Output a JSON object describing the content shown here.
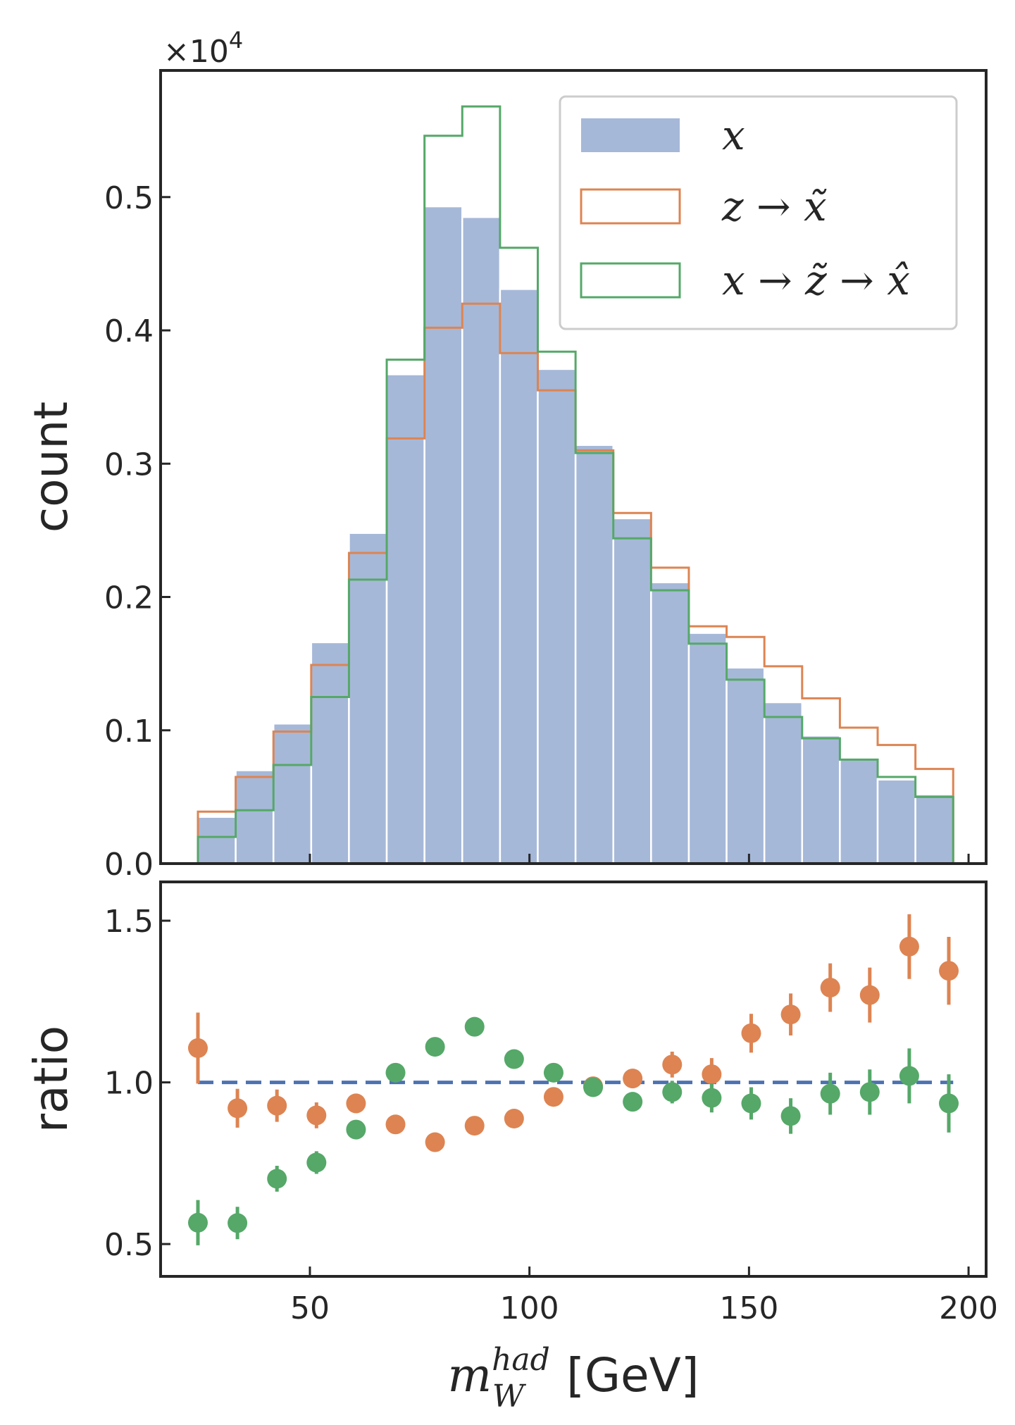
{
  "chart_data": [
    {
      "type": "bar",
      "subtype": "histogram",
      "ylabel": "count",
      "offset_text": "×10",
      "offset_exponent": "4",
      "ylim": [
        0,
        0.595
      ],
      "xlim": [
        16,
        204
      ],
      "yticks": [
        0.0,
        0.1,
        0.2,
        0.3,
        0.4,
        0.5
      ],
      "ytick_labels": [
        "0.0",
        "0.1",
        "0.2",
        "0.3",
        "0.4",
        "0.5"
      ],
      "bin_edges": [
        24.5,
        33.1,
        41.7,
        50.3,
        58.9,
        67.5,
        76.1,
        84.7,
        93.3,
        101.9,
        110.5,
        119.1,
        127.7,
        136.3,
        144.9,
        153.5,
        162.1,
        170.7,
        179.3,
        187.9,
        196.5
      ],
      "legend": {
        "placement": "top-right"
      },
      "series": [
        {
          "name": "x",
          "style": "filled",
          "color": "#a6b8d8",
          "values": [
            0.035,
            0.07,
            0.105,
            0.166,
            0.248,
            0.367,
            0.493,
            0.485,
            0.431,
            0.371,
            0.314,
            0.259,
            0.211,
            0.173,
            0.147,
            0.121,
            0.096,
            0.079,
            0.063,
            0.052
          ]
        },
        {
          "name": "z → x̃",
          "style": "step",
          "color": "#dd8452",
          "values": [
            0.039,
            0.065,
            0.099,
            0.149,
            0.233,
            0.319,
            0.402,
            0.42,
            0.383,
            0.355,
            0.31,
            0.263,
            0.222,
            0.178,
            0.17,
            0.148,
            0.124,
            0.102,
            0.089,
            0.071
          ]
        },
        {
          "name": "x → z̃ → x̂",
          "style": "step",
          "color": "#55a868",
          "values": [
            0.02,
            0.04,
            0.074,
            0.125,
            0.213,
            0.378,
            0.546,
            0.568,
            0.462,
            0.384,
            0.308,
            0.244,
            0.205,
            0.165,
            0.138,
            0.11,
            0.094,
            0.078,
            0.065,
            0.05
          ]
        }
      ],
      "legend_labels": [
        "x",
        "z → x̃",
        "x → z̃ → x̂"
      ]
    },
    {
      "type": "scatter",
      "ylabel": "ratio",
      "xlabel": "m",
      "xlabel_sup": "had",
      "xlabel_sub": "W",
      "xlabel_unit": "[GeV]",
      "xlim": [
        16,
        204
      ],
      "ylim": [
        0.4,
        1.62
      ],
      "xticks": [
        50,
        100,
        150,
        200
      ],
      "xtick_labels": [
        "50",
        "100",
        "150",
        "200"
      ],
      "yticks": [
        0.5,
        1.0,
        1.5
      ],
      "ytick_labels": [
        "0.5",
        "1.0",
        "1.5"
      ],
      "reference_line": {
        "y": 1.0,
        "x_range": [
          24.5,
          196.5
        ],
        "style": "dashed",
        "color": "#4c72b0"
      },
      "x": [
        24.5,
        33.5,
        42.5,
        51.5,
        60.5,
        69.5,
        78.5,
        87.5,
        96.5,
        105.5,
        114.5,
        123.5,
        132.5,
        141.5,
        150.5,
        159.5,
        168.5,
        177.5,
        186.5,
        195.5
      ],
      "series": [
        {
          "name": "z → x̃",
          "color": "#dd8452",
          "values": [
            1.106,
            0.92,
            0.928,
            0.898,
            0.935,
            0.87,
            0.815,
            0.866,
            0.888,
            0.955,
            0.988,
            1.012,
            1.055,
            1.025,
            1.152,
            1.21,
            1.293,
            1.27,
            1.42,
            1.345
          ],
          "errors": [
            0.11,
            0.06,
            0.05,
            0.04,
            0.03,
            0.02,
            0.015,
            0.015,
            0.015,
            0.015,
            0.02,
            0.03,
            0.04,
            0.05,
            0.06,
            0.065,
            0.075,
            0.085,
            0.1,
            0.105
          ]
        },
        {
          "name": "x → z̃ → x̂",
          "color": "#55a868",
          "values": [
            0.566,
            0.565,
            0.702,
            0.752,
            0.854,
            1.03,
            1.11,
            1.172,
            1.072,
            1.03,
            0.985,
            0.94,
            0.97,
            0.952,
            0.935,
            0.896,
            0.965,
            0.97,
            1.02,
            0.935
          ],
          "errors": [
            0.07,
            0.05,
            0.04,
            0.035,
            0.025,
            0.02,
            0.015,
            0.015,
            0.015,
            0.02,
            0.025,
            0.03,
            0.035,
            0.045,
            0.05,
            0.055,
            0.065,
            0.07,
            0.085,
            0.09
          ]
        }
      ]
    }
  ]
}
